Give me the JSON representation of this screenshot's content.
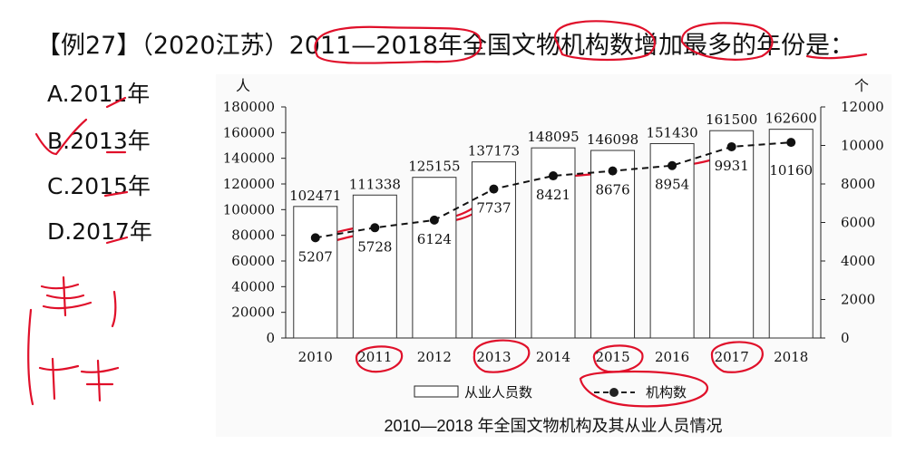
{
  "question": {
    "text": "【例27】（2020江苏）2011—2018年全国文物机构数增加最多的年份是："
  },
  "options": [
    {
      "text": "A.2011年"
    },
    {
      "text": "B.2013年"
    },
    {
      "text": "C.2015年"
    },
    {
      "text": "D.2017年"
    }
  ],
  "chart_data": {
    "type": "bar",
    "title": "2010—2018 年全国文物机构及其从业人员情况",
    "categories": [
      "2010",
      "2011",
      "2012",
      "2013",
      "2014",
      "2015",
      "2016",
      "2017",
      "2018"
    ],
    "series": [
      {
        "name": "从业人员数",
        "type": "bar",
        "axis": "left",
        "values": [
          102471,
          111338,
          125155,
          137173,
          148095,
          146098,
          151430,
          161500,
          162600
        ],
        "labels": [
          "102471",
          "111338",
          "125155",
          "137173",
          "148095",
          "146098",
          "151430",
          "161500",
          "162600"
        ]
      },
      {
        "name": "机构数",
        "type": "line",
        "axis": "right",
        "values": [
          5207,
          5728,
          6124,
          7737,
          8421,
          8676,
          8954,
          9931,
          10160
        ],
        "labels": [
          "5207",
          "5728",
          "6124",
          "7737",
          "8421",
          "8676",
          "8954",
          "9931",
          "10160"
        ]
      }
    ],
    "y_left": {
      "unit": "人",
      "range": [
        0,
        180000
      ],
      "ticks": [
        "0",
        "20000",
        "40000",
        "60000",
        "80000",
        "100000",
        "120000",
        "140000",
        "160000",
        "180000"
      ]
    },
    "y_right": {
      "unit": "个",
      "range": [
        0,
        12000
      ],
      "ticks": [
        "0",
        "2000",
        "4000",
        "6000",
        "8000",
        "10000",
        "12000"
      ]
    },
    "legend_position": "bottom",
    "grid": false,
    "colors": {
      "bar_fill": "#ffffff",
      "bar_stroke": "#333333",
      "line": "#111111",
      "annotation": "#e0102a"
    }
  }
}
